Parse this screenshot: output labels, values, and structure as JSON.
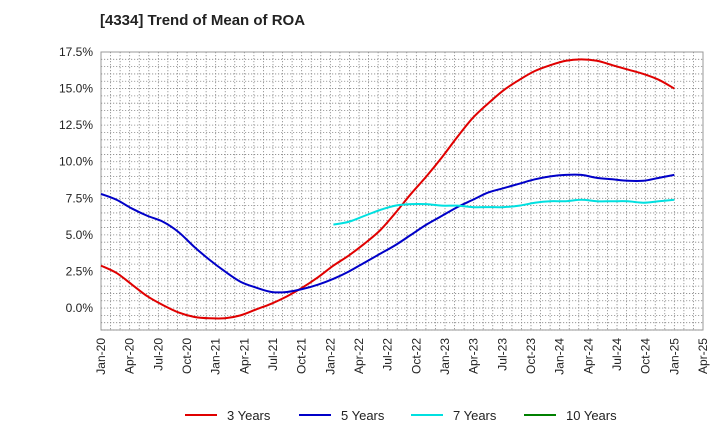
{
  "chart_data": {
    "type": "line",
    "title": "[4334]  Trend of Mean of ROA",
    "xlabel": "",
    "ylabel": "",
    "x_tick_labels": [
      "Jan-20",
      "Apr-20",
      "Jul-20",
      "Oct-20",
      "Jan-21",
      "Apr-21",
      "Jul-21",
      "Oct-21",
      "Jan-22",
      "Apr-22",
      "Jul-22",
      "Oct-22",
      "Jan-23",
      "Apr-23",
      "Jul-23",
      "Oct-23",
      "Jan-24",
      "Apr-24",
      "Jul-24",
      "Oct-24",
      "Jan-25",
      "Apr-25"
    ],
    "y_tick_labels": [
      "0.0%",
      "2.5%",
      "5.0%",
      "7.5%",
      "10.0%",
      "12.5%",
      "15.0%",
      "17.5%"
    ],
    "y_ticks": [
      0,
      2.5,
      5,
      7.5,
      10,
      12.5,
      15,
      17.5
    ],
    "ylim": [
      -1.5,
      17.5
    ],
    "grid": true,
    "legend_position": "bottom",
    "series": [
      {
        "name": "3 Years",
        "color": "#e00000",
        "values": [
          2.9,
          2.4,
          1.6,
          0.8,
          0.2,
          -0.3,
          -0.6,
          -0.7,
          -0.7,
          -0.5,
          -0.1,
          0.3,
          0.8,
          1.4,
          2.1,
          2.9,
          3.6,
          4.4,
          5.3,
          6.5,
          7.8,
          9.0,
          10.3,
          11.7,
          13.0,
          14.0,
          14.9,
          15.6,
          16.2,
          16.6,
          16.9,
          17.0,
          16.9,
          16.6,
          16.3,
          16.0,
          15.6,
          15.0
        ]
      },
      {
        "name": "5 Years",
        "color": "#0000c8",
        "values": [
          7.8,
          7.4,
          6.8,
          6.3,
          5.9,
          5.2,
          4.2,
          3.3,
          2.5,
          1.8,
          1.4,
          1.1,
          1.1,
          1.3,
          1.6,
          2.0,
          2.5,
          3.1,
          3.7,
          4.3,
          5.0,
          5.7,
          6.3,
          6.9,
          7.4,
          7.9,
          8.2,
          8.5,
          8.8,
          9.0,
          9.1,
          9.1,
          8.9,
          8.8,
          8.7,
          8.7,
          8.9,
          9.1
        ]
      },
      {
        "name": "7 Years",
        "color": "#00e0e0",
        "values": [
          null,
          null,
          null,
          null,
          null,
          null,
          null,
          null,
          null,
          null,
          null,
          null,
          null,
          null,
          null,
          5.7,
          5.9,
          6.3,
          6.7,
          7.0,
          7.1,
          7.1,
          7.0,
          7.0,
          6.9,
          6.9,
          6.9,
          7.0,
          7.2,
          7.3,
          7.3,
          7.4,
          7.3,
          7.3,
          7.3,
          7.2,
          7.3,
          7.4
        ]
      },
      {
        "name": "10 Years",
        "color": "#008000",
        "values": []
      }
    ]
  }
}
